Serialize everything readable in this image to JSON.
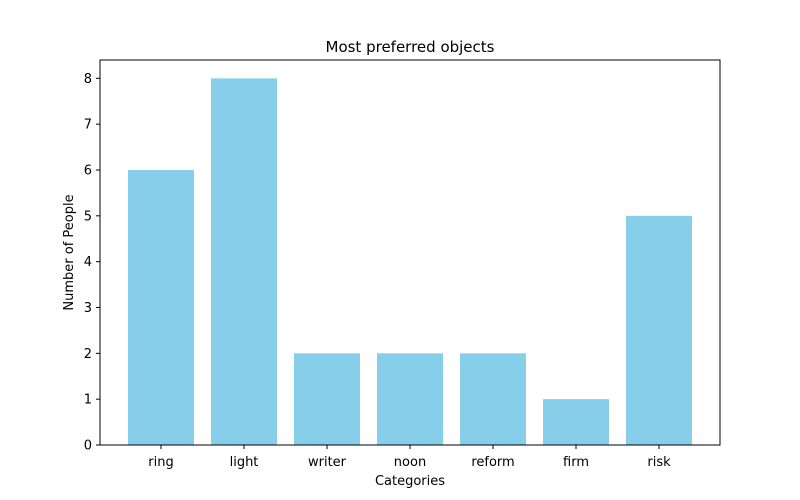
{
  "chart_data": {
    "type": "bar",
    "title": "Most preferred objects",
    "xlabel": "Categories",
    "ylabel": "Number of People",
    "categories": [
      "ring",
      "light",
      "writer",
      "noon",
      "reform",
      "firm",
      "risk"
    ],
    "values": [
      6,
      8,
      2,
      2,
      2,
      1,
      5
    ],
    "ylim": [
      0,
      8.4
    ],
    "yticks": [
      0,
      1,
      2,
      3,
      4,
      5,
      6,
      7,
      8
    ],
    "bar_color": "#87CEEB",
    "grid": false,
    "legend": "none"
  }
}
